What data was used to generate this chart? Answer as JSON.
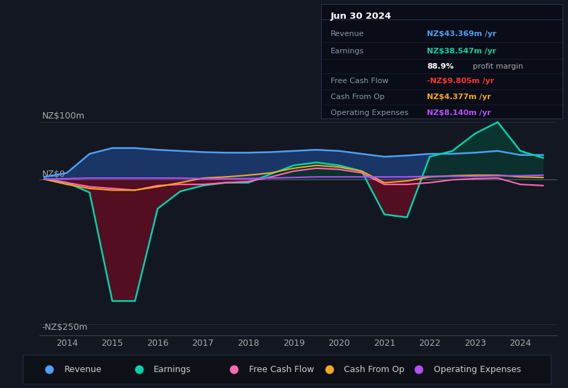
{
  "bg_color": "#131722",
  "plot_bg_color": "#131722",
  "info_box_bg": "#0a0d17",
  "legend_bg": "#0d1117",
  "ylabel_top": "NZ$100m",
  "ylabel_bottom": "-NZ$250m",
  "ylabel_zero": "NZ$0",
  "ylim_min": -270,
  "ylim_max": 130,
  "xlim_min": 2013.4,
  "xlim_max": 2024.8,
  "info_date": "Jun 30 2024",
  "info_rows": [
    {
      "label": "Revenue",
      "value": "NZ$43.369m /yr",
      "value_color": "#4e9ff5"
    },
    {
      "label": "Earnings",
      "value": "NZ$38.547m /yr",
      "value_color": "#00d4aa"
    },
    {
      "label": "",
      "value": "88.9% profit margin",
      "value_color": "#ffffff"
    },
    {
      "label": "Free Cash Flow",
      "value": "-NZ$9.805m /yr",
      "value_color": "#ff3333"
    },
    {
      "label": "Cash From Op",
      "value": "NZ$4.377m /yr",
      "value_color": "#f5a623"
    },
    {
      "label": "Operating Expenses",
      "value": "NZ$8.140m /yr",
      "value_color": "#b44fff"
    }
  ],
  "legend": [
    {
      "label": "Revenue",
      "color": "#4e9ff5"
    },
    {
      "label": "Earnings",
      "color": "#00d4aa"
    },
    {
      "label": "Free Cash Flow",
      "color": "#ff69b4"
    },
    {
      "label": "Cash From Op",
      "color": "#f5a623"
    },
    {
      "label": "Operating Expenses",
      "color": "#b44fff"
    }
  ],
  "xtick_years": [
    2014,
    2015,
    2016,
    2017,
    2018,
    2019,
    2020,
    2021,
    2022,
    2023,
    2024
  ],
  "years": [
    2013.5,
    2014.0,
    2014.5,
    2015.0,
    2015.5,
    2016.0,
    2016.5,
    2017.0,
    2017.5,
    2018.0,
    2018.5,
    2019.0,
    2019.5,
    2020.0,
    2020.5,
    2021.0,
    2021.5,
    2022.0,
    2022.5,
    2023.0,
    2023.5,
    2024.0,
    2024.5
  ],
  "revenue": [
    5,
    12,
    45,
    55,
    55,
    52,
    50,
    48,
    47,
    47,
    48,
    50,
    52,
    50,
    45,
    40,
    42,
    45,
    45,
    47,
    50,
    43,
    43
  ],
  "earnings": [
    2,
    -5,
    -22,
    -210,
    -210,
    -50,
    -20,
    -10,
    -5,
    -5,
    10,
    25,
    30,
    25,
    15,
    -60,
    -65,
    40,
    50,
    80,
    100,
    50,
    38
  ],
  "fcf": [
    1,
    -5,
    -12,
    -15,
    -18,
    -10,
    -8,
    -8,
    -5,
    -3,
    5,
    15,
    20,
    18,
    12,
    -8,
    -8,
    -5,
    0,
    2,
    3,
    -8,
    -10
  ],
  "cfo": [
    1,
    -8,
    -15,
    -18,
    -18,
    -12,
    -5,
    3,
    5,
    8,
    12,
    20,
    25,
    22,
    15,
    -5,
    -2,
    5,
    7,
    8,
    8,
    5,
    4
  ],
  "opex": [
    1,
    2,
    3,
    3,
    3,
    3,
    3,
    2,
    2,
    2,
    3,
    4,
    5,
    5,
    5,
    5,
    5,
    6,
    6,
    6,
    7,
    7,
    8
  ],
  "rev_color": "#4e9ff5",
  "earn_color": "#00d4aa",
  "fcf_color": "#ff69b4",
  "cfo_color": "#f5a623",
  "opex_color": "#b44fff",
  "fill_rev_earn_color": "#1a3a6e",
  "fill_earn_teal_color": "#0a3530",
  "fill_earn_neg_color": "#5a0a1a"
}
